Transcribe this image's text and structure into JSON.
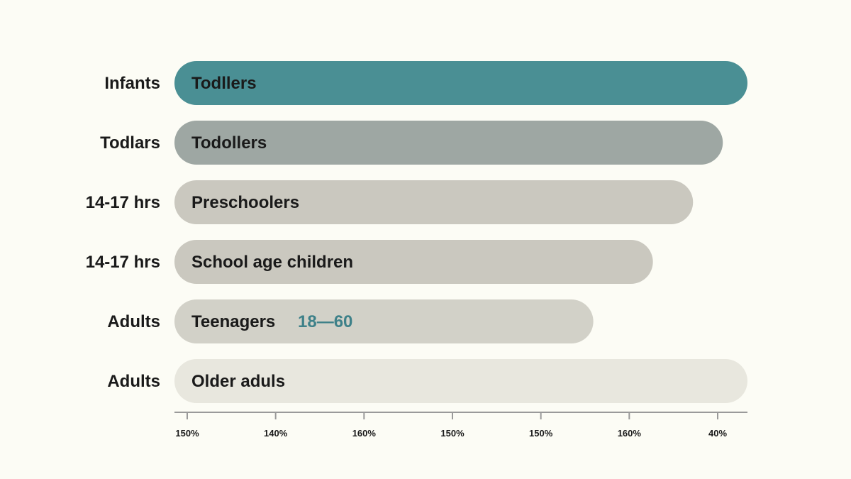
{
  "chart_data": {
    "type": "bar",
    "orientation": "horizontal",
    "title": "",
    "xlabel": "",
    "ylabel": "",
    "xlim": [
      0,
      100
    ],
    "grid": false,
    "legend": "none",
    "rows": [
      {
        "label": "Infants",
        "bar_label": "Todllers",
        "value": 100,
        "color": "#4a8f94"
      },
      {
        "label": "Todlars",
        "bar_label": "Todollers",
        "value": 95.7,
        "color": "#9ea7a3"
      },
      {
        "label": "14-17 hrs",
        "bar_label": "Preschoolers",
        "value": 90.5,
        "color": "#cac8bf"
      },
      {
        "label": "14-17 hrs",
        "bar_label": "School age children",
        "value": 83.5,
        "color": "#cac8bf"
      },
      {
        "label": "Adults",
        "bar_label": "Teenagers",
        "value": 73.1,
        "color": "#d2d1c8",
        "note": "18—60",
        "note_color": "#3e8189"
      },
      {
        "label": "Adults",
        "bar_label": "Older aduls",
        "value": 100,
        "color": "#e8e7de"
      }
    ],
    "tick_labels": [
      "150%",
      "140%",
      "160%",
      "150%",
      "150%",
      "160%",
      "40%"
    ],
    "axis_color": "#9a9a9a"
  }
}
